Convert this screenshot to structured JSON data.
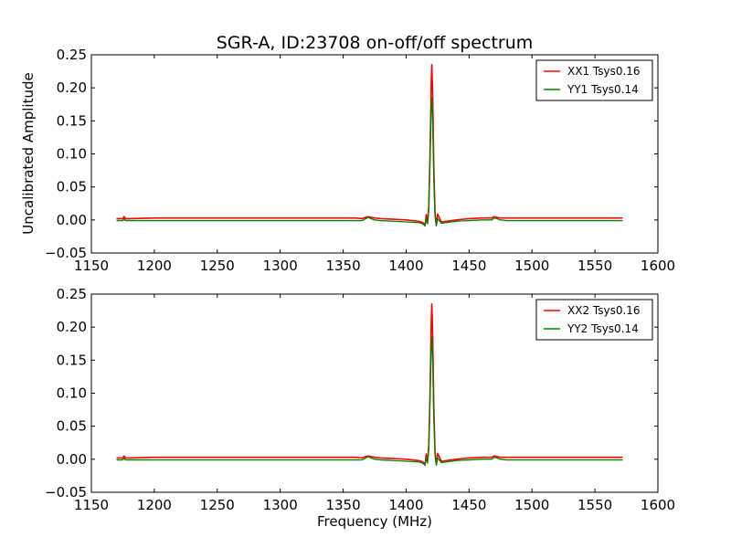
{
  "chart_data": {
    "type": "line",
    "title": "SGR-A, ID:23708 on-off/off spectrum",
    "xlabel": "Frequency (MHz)",
    "ylabel": "Uncalibrated Amplitude",
    "xlim": [
      1150,
      1600
    ],
    "ylim": [
      -0.05,
      0.25
    ],
    "xticks": [
      1150,
      1200,
      1250,
      1300,
      1350,
      1400,
      1450,
      1500,
      1550,
      1600
    ],
    "xtick_labels": [
      "1150",
      "1200",
      "1250",
      "1300",
      "1350",
      "1400",
      "1450",
      "1500",
      "1550",
      "1600"
    ],
    "yticks": [
      -0.05,
      0.0,
      0.05,
      0.1,
      0.15,
      0.2,
      0.25
    ],
    "ytick_labels": [
      "−0.05",
      "0.00",
      "0.05",
      "0.10",
      "0.15",
      "0.20",
      "0.25"
    ],
    "grid": false,
    "legend_position": "top-right",
    "panels": [
      {
        "series": [
          {
            "name": "XX1 Tsys0.16",
            "color": "#ff0000",
            "x": [
              1170,
              1175,
              1176,
              1177,
              1180,
              1200,
              1250,
              1300,
              1340,
              1350,
              1360,
              1365,
              1368,
              1370,
              1372,
              1375,
              1380,
              1390,
              1400,
              1410,
              1412,
              1414,
              1415,
              1416,
              1417,
              1418,
              1419,
              1420,
              1420.4,
              1421,
              1422,
              1423,
              1424,
              1425,
              1428,
              1432,
              1440,
              1450,
              1460,
              1468,
              1470,
              1472,
              1475,
              1480,
              1500,
              1550,
              1572
            ],
            "y": [
              0.002,
              0.002,
              0.005,
              0.002,
              0.002,
              0.003,
              0.003,
              0.003,
              0.003,
              0.003,
              0.003,
              0.002,
              0.004,
              0.005,
              0.004,
              0.003,
              0.002,
              0.001,
              0.0,
              -0.002,
              -0.003,
              -0.005,
              -0.009,
              0.008,
              -0.004,
              0.02,
              0.1,
              0.21,
              0.235,
              0.2,
              0.08,
              0.01,
              -0.008,
              0.009,
              -0.003,
              -0.002,
              0.0,
              0.002,
              0.003,
              0.003,
              0.005,
              0.004,
              0.003,
              0.003,
              0.003,
              0.003,
              0.003
            ]
          },
          {
            "name": "YY1 Tsys0.14",
            "color": "#008000",
            "x": [
              1170,
              1175,
              1176,
              1177,
              1180,
              1200,
              1250,
              1300,
              1340,
              1350,
              1360,
              1365,
              1368,
              1370,
              1372,
              1375,
              1380,
              1390,
              1400,
              1410,
              1412,
              1414,
              1415,
              1416,
              1417,
              1418,
              1419,
              1420,
              1420.4,
              1421,
              1422,
              1423,
              1424,
              1425,
              1428,
              1432,
              1440,
              1450,
              1460,
              1468,
              1470,
              1472,
              1475,
              1480,
              1500,
              1550,
              1572
            ],
            "y": [
              -0.001,
              -0.001,
              0.002,
              -0.001,
              -0.001,
              -0.001,
              -0.001,
              -0.001,
              -0.001,
              -0.001,
              -0.001,
              -0.001,
              0.002,
              0.004,
              0.002,
              0.0,
              -0.001,
              -0.002,
              -0.003,
              -0.004,
              -0.005,
              -0.007,
              -0.009,
              0.002,
              -0.006,
              0.015,
              0.09,
              0.17,
              0.185,
              0.16,
              0.06,
              0.005,
              -0.009,
              0.002,
              -0.005,
              -0.004,
              -0.002,
              -0.001,
              0.0,
              0.0,
              0.003,
              0.002,
              0.0,
              -0.001,
              -0.001,
              -0.001,
              -0.001
            ]
          }
        ]
      },
      {
        "series": [
          {
            "name": "XX2 Tsys0.16",
            "color": "#ff0000",
            "x": [
              1170,
              1175,
              1176,
              1177,
              1180,
              1200,
              1250,
              1300,
              1340,
              1350,
              1360,
              1365,
              1368,
              1370,
              1372,
              1375,
              1380,
              1390,
              1400,
              1410,
              1412,
              1414,
              1415,
              1416,
              1417,
              1418,
              1419,
              1420,
              1420.4,
              1421,
              1422,
              1423,
              1424,
              1425,
              1428,
              1432,
              1440,
              1450,
              1460,
              1468,
              1470,
              1472,
              1475,
              1480,
              1500,
              1550,
              1572
            ],
            "y": [
              0.002,
              0.002,
              0.005,
              0.002,
              0.002,
              0.003,
              0.003,
              0.003,
              0.003,
              0.003,
              0.003,
              0.002,
              0.004,
              0.005,
              0.004,
              0.003,
              0.002,
              0.001,
              0.0,
              -0.002,
              -0.003,
              -0.005,
              -0.009,
              0.008,
              -0.004,
              0.02,
              0.1,
              0.21,
              0.235,
              0.2,
              0.08,
              0.01,
              -0.008,
              0.009,
              -0.003,
              -0.002,
              0.0,
              0.002,
              0.003,
              0.003,
              0.005,
              0.004,
              0.003,
              0.003,
              0.003,
              0.003,
              0.003
            ]
          },
          {
            "name": "YY2 Tsys0.14",
            "color": "#008000",
            "x": [
              1170,
              1175,
              1176,
              1177,
              1180,
              1200,
              1250,
              1300,
              1340,
              1350,
              1360,
              1365,
              1368,
              1370,
              1372,
              1375,
              1380,
              1390,
              1400,
              1410,
              1412,
              1414,
              1415,
              1416,
              1417,
              1418,
              1419,
              1420,
              1420.4,
              1421,
              1422,
              1423,
              1424,
              1425,
              1428,
              1432,
              1440,
              1450,
              1460,
              1468,
              1470,
              1472,
              1475,
              1480,
              1500,
              1550,
              1572
            ],
            "y": [
              -0.001,
              -0.001,
              0.002,
              -0.001,
              -0.001,
              -0.001,
              -0.001,
              -0.001,
              -0.001,
              -0.001,
              -0.001,
              -0.001,
              0.002,
              0.004,
              0.002,
              0.0,
              -0.001,
              -0.002,
              -0.003,
              -0.004,
              -0.005,
              -0.007,
              -0.009,
              0.002,
              -0.006,
              0.015,
              0.09,
              0.17,
              0.185,
              0.16,
              0.06,
              0.005,
              -0.009,
              0.002,
              -0.005,
              -0.004,
              -0.002,
              -0.001,
              0.0,
              0.0,
              0.003,
              0.002,
              0.0,
              -0.001,
              -0.001,
              -0.001,
              -0.001
            ]
          }
        ]
      }
    ]
  }
}
